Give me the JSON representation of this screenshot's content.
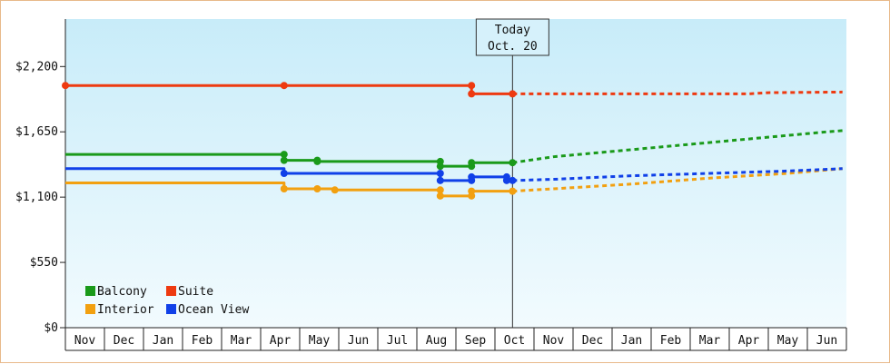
{
  "chart_data": {
    "type": "line",
    "title": "",
    "xlabel": "",
    "ylabel": "",
    "ylim": [
      0,
      2600
    ],
    "y_ticks": [
      {
        "value": 0,
        "label": "$0"
      },
      {
        "value": 550,
        "label": "$550"
      },
      {
        "value": 1100,
        "label": "$1,100"
      },
      {
        "value": 1650,
        "label": "$1,650"
      },
      {
        "value": 2200,
        "label": "$2,200"
      }
    ],
    "months": [
      "Nov",
      "Dec",
      "Jan",
      "Feb",
      "Mar",
      "Apr",
      "May",
      "Jun",
      "Jul",
      "Aug",
      "Sep",
      "Oct",
      "Nov",
      "Dec",
      "Jan",
      "Feb",
      "Mar",
      "Apr",
      "May",
      "Jun"
    ],
    "today": {
      "line1": "Today",
      "line2": "Oct. 20",
      "x": 11.45
    },
    "legend": {
      "placement": "bottom-left",
      "columns": 2
    },
    "series": [
      {
        "name": "Balcony",
        "color": "#1a9a1a",
        "actual": [
          [
            0.0,
            1460
          ],
          [
            5.6,
            1460
          ],
          [
            5.6,
            1410
          ],
          [
            6.45,
            1410
          ],
          [
            6.45,
            1400
          ],
          [
            9.6,
            1400
          ],
          [
            9.6,
            1360
          ],
          [
            10.4,
            1360
          ],
          [
            10.4,
            1390
          ],
          [
            11.45,
            1390
          ]
        ],
        "points": [
          [
            5.6,
            1460
          ],
          [
            5.6,
            1410
          ],
          [
            6.45,
            1410
          ],
          [
            6.45,
            1400
          ],
          [
            9.6,
            1400
          ],
          [
            9.6,
            1360
          ],
          [
            10.4,
            1360
          ],
          [
            10.4,
            1390
          ],
          [
            11.45,
            1390
          ]
        ],
        "forecast": [
          [
            11.45,
            1390
          ],
          [
            12.5,
            1440
          ],
          [
            13.5,
            1470
          ],
          [
            14.5,
            1500
          ],
          [
            15.5,
            1530
          ],
          [
            16.5,
            1560
          ],
          [
            17.5,
            1590
          ],
          [
            18.5,
            1620
          ],
          [
            19.5,
            1650
          ],
          [
            19.9,
            1660
          ]
        ]
      },
      {
        "name": "Suite",
        "color": "#ee3a10",
        "actual": [
          [
            0.0,
            2040
          ],
          [
            5.6,
            2040
          ],
          [
            10.4,
            2040
          ],
          [
            10.4,
            1970
          ],
          [
            11.45,
            1970
          ]
        ],
        "points": [
          [
            0.0,
            2040
          ],
          [
            5.6,
            2040
          ],
          [
            10.4,
            2040
          ],
          [
            10.4,
            1970
          ],
          [
            11.45,
            1970
          ]
        ],
        "forecast": [
          [
            11.45,
            1970
          ],
          [
            13.5,
            1970
          ],
          [
            16.5,
            1970
          ],
          [
            17.5,
            1970
          ],
          [
            18.0,
            1980
          ],
          [
            19.9,
            1985
          ]
        ]
      },
      {
        "name": "Interior",
        "color": "#f2a010",
        "actual": [
          [
            0.0,
            1220
          ],
          [
            5.6,
            1220
          ],
          [
            5.6,
            1170
          ],
          [
            6.45,
            1170
          ],
          [
            6.45,
            1170
          ],
          [
            6.9,
            1170
          ],
          [
            6.9,
            1160
          ],
          [
            9.6,
            1160
          ],
          [
            9.6,
            1110
          ],
          [
            10.4,
            1110
          ],
          [
            10.4,
            1150
          ],
          [
            11.45,
            1150
          ]
        ],
        "points": [
          [
            5.6,
            1170
          ],
          [
            6.45,
            1170
          ],
          [
            6.9,
            1160
          ],
          [
            9.6,
            1160
          ],
          [
            9.6,
            1110
          ],
          [
            10.4,
            1110
          ],
          [
            10.4,
            1150
          ],
          [
            11.45,
            1150
          ]
        ],
        "forecast": [
          [
            11.45,
            1150
          ],
          [
            12.5,
            1170
          ],
          [
            14.5,
            1210
          ],
          [
            16.5,
            1260
          ],
          [
            18.5,
            1300
          ],
          [
            19.9,
            1340
          ]
        ]
      },
      {
        "name": "Ocean View",
        "color": "#1040e8",
        "actual": [
          [
            0.0,
            1340
          ],
          [
            5.6,
            1340
          ],
          [
            5.6,
            1300
          ],
          [
            9.6,
            1300
          ],
          [
            9.6,
            1240
          ],
          [
            10.4,
            1240
          ],
          [
            10.4,
            1270
          ],
          [
            11.3,
            1270
          ],
          [
            11.3,
            1240
          ],
          [
            11.45,
            1240
          ]
        ],
        "points": [
          [
            5.6,
            1300
          ],
          [
            9.6,
            1300
          ],
          [
            9.6,
            1240
          ],
          [
            10.4,
            1240
          ],
          [
            10.4,
            1270
          ],
          [
            11.3,
            1270
          ],
          [
            11.3,
            1240
          ],
          [
            11.45,
            1240
          ]
        ],
        "forecast": [
          [
            11.45,
            1240
          ],
          [
            12.5,
            1250
          ],
          [
            13.5,
            1265
          ],
          [
            14.5,
            1280
          ],
          [
            16.5,
            1300
          ],
          [
            18.5,
            1320
          ],
          [
            19.9,
            1340
          ]
        ]
      }
    ]
  }
}
